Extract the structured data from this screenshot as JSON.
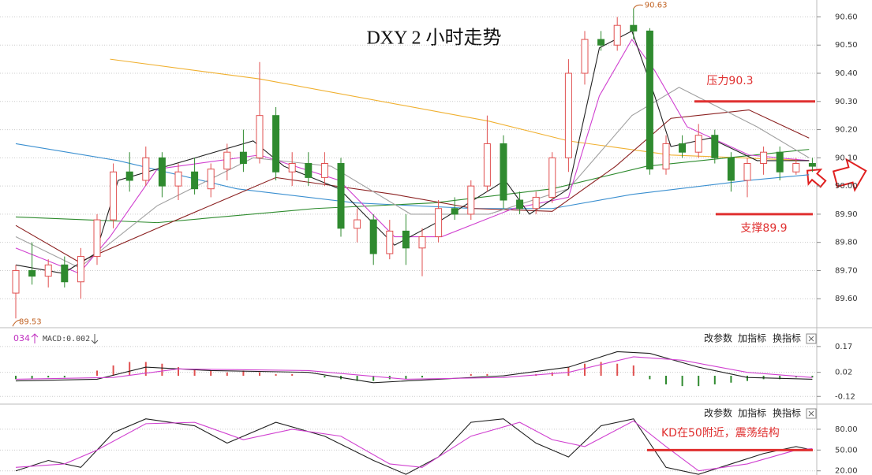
{
  "chart_data": [
    {
      "type": "candlestick",
      "title": "DXY 2 小时走势",
      "up_color": "#e05050",
      "down_color": "#2f8a2f",
      "grid": true,
      "ylim": [
        89.5,
        90.66
      ],
      "yticks": [
        {
          "value": 90.6,
          "label": "90.60"
        },
        {
          "value": 90.5,
          "label": "90.50"
        },
        {
          "value": 90.4,
          "label": "90.40"
        },
        {
          "value": 90.3,
          "label": "90.30"
        },
        {
          "value": 90.2,
          "label": "90.20"
        },
        {
          "value": 90.1,
          "label": "90.10"
        },
        {
          "value": 90.0,
          "label": "90.00"
        },
        {
          "value": 89.9,
          "label": "89.90"
        },
        {
          "value": 89.8,
          "label": "89.80"
        },
        {
          "value": 89.7,
          "label": "89.70"
        },
        {
          "value": 89.6,
          "label": "89.60"
        }
      ],
      "open": [
        89.62,
        89.7,
        89.68,
        89.72,
        89.66,
        89.75,
        89.88,
        90.05,
        90.02,
        90.1,
        90.0,
        90.05,
        89.99,
        90.06,
        90.12,
        90.1,
        90.25,
        90.05,
        90.08,
        90.03,
        90.08,
        89.85,
        89.88,
        89.76,
        89.84,
        89.78,
        89.82,
        89.92,
        89.9,
        90.0,
        90.15,
        89.95,
        89.92,
        89.96,
        90.1,
        90.4,
        90.52,
        90.5,
        90.57,
        90.55,
        90.06,
        90.15,
        90.12,
        90.18,
        90.1,
        90.02,
        90.08,
        90.12,
        90.05,
        90.08
      ],
      "high": [
        89.72,
        89.8,
        89.74,
        89.75,
        89.78,
        89.9,
        90.08,
        90.12,
        90.14,
        90.12,
        90.08,
        90.1,
        90.08,
        90.15,
        90.2,
        90.44,
        90.28,
        90.12,
        90.12,
        90.12,
        90.1,
        89.92,
        89.9,
        89.88,
        89.9,
        89.85,
        89.95,
        89.96,
        90.02,
        90.25,
        90.18,
        89.98,
        89.98,
        90.12,
        90.45,
        90.55,
        90.55,
        90.6,
        90.63,
        90.56,
        90.18,
        90.18,
        90.22,
        90.2,
        90.12,
        90.1,
        90.14,
        90.14,
        90.1,
        90.1
      ],
      "low": [
        89.53,
        89.65,
        89.64,
        89.64,
        89.6,
        89.72,
        89.85,
        89.98,
        90.0,
        89.96,
        89.95,
        89.97,
        89.96,
        90.02,
        90.05,
        90.08,
        90.02,
        90.0,
        90.0,
        90.0,
        89.82,
        89.8,
        89.72,
        89.74,
        89.72,
        89.68,
        89.8,
        89.88,
        89.88,
        89.98,
        89.92,
        89.9,
        89.9,
        89.94,
        90.05,
        90.36,
        90.48,
        90.48,
        90.52,
        90.04,
        90.04,
        90.1,
        90.1,
        90.08,
        89.98,
        89.96,
        90.04,
        90.02,
        90.04,
        90.05
      ],
      "close": [
        89.7,
        89.68,
        89.72,
        89.66,
        89.75,
        89.88,
        90.05,
        90.02,
        90.1,
        90.0,
        90.05,
        89.99,
        90.06,
        90.12,
        90.08,
        90.25,
        90.05,
        90.08,
        90.03,
        90.08,
        89.85,
        89.88,
        89.76,
        89.84,
        89.78,
        89.82,
        89.92,
        89.9,
        90.0,
        90.15,
        89.95,
        89.92,
        89.96,
        90.1,
        90.4,
        90.52,
        90.5,
        90.57,
        90.55,
        90.06,
        90.15,
        90.12,
        90.18,
        90.1,
        90.02,
        90.08,
        90.12,
        90.05,
        90.08,
        90.07
      ],
      "lines": [
        {
          "color": "#f0b030",
          "x": [
            5.8,
            15,
            29.1,
            34,
            40.3,
            48.8
          ],
          "values": [
            90.45,
            90.38,
            90.23,
            90.16,
            90.11,
            90.09
          ]
        },
        {
          "color": "#3a8fd0",
          "x": [
            0,
            6.3,
            13.6,
            20.9,
            28.2,
            33,
            37.9,
            45.1,
            48.8
          ],
          "values": [
            90.15,
            90.09,
            89.99,
            89.94,
            89.92,
            89.92,
            89.97,
            90.02,
            90.04
          ]
        },
        {
          "color": "#2e8b2e",
          "x": [
            0,
            8.7,
            18.4,
            25.7,
            33,
            38.8,
            48.8
          ],
          "values": [
            89.89,
            89.87,
            89.92,
            89.94,
            89.99,
            90.07,
            90.13
          ]
        },
        {
          "color": "#8b2020",
          "x": [
            0,
            3.9,
            8.7,
            16,
            23.3,
            28.2,
            33,
            36.9,
            40.3,
            45.1,
            48.8
          ],
          "values": [
            89.86,
            89.73,
            89.85,
            90.03,
            89.97,
            89.92,
            89.91,
            90.07,
            90.24,
            90.27,
            90.17
          ]
        },
        {
          "color": "#a0a0a0",
          "x": [
            0,
            3.9,
            8.7,
            14.6,
            19.4,
            24.3,
            29.1,
            34,
            37.9,
            40.8,
            45.6,
            48.8
          ],
          "values": [
            89.82,
            89.71,
            89.93,
            90.1,
            90.07,
            89.9,
            89.9,
            89.99,
            90.25,
            90.35,
            90.21,
            90.1
          ]
        },
        {
          "color": "#d040d0",
          "x": [
            0,
            3.9,
            5.8,
            8.7,
            15,
            19.9,
            23.3,
            26.2,
            30.6,
            34,
            35.9,
            37.9,
            39.3,
            41.3,
            45.1,
            48.8
          ],
          "values": [
            89.78,
            89.69,
            89.82,
            90.06,
            90.11,
            90.02,
            89.82,
            89.82,
            89.92,
            89.96,
            90.32,
            90.52,
            90.41,
            90.21,
            90.11,
            90.09
          ]
        },
        {
          "color": "#202020",
          "x": [
            0,
            2.9,
            4.9,
            6.3,
            14.6,
            16.5,
            19.9,
            23.3,
            26.2,
            30.1,
            31.6,
            34,
            35.9,
            37.9,
            39.3,
            40.3,
            42.7,
            45.6,
            48.8
          ],
          "values": [
            89.72,
            89.69,
            89.76,
            90.02,
            90.16,
            90.07,
            89.99,
            89.79,
            89.88,
            90.02,
            89.9,
            89.99,
            90.49,
            90.55,
            90.32,
            90.14,
            90.17,
            90.09,
            90.09
          ]
        }
      ],
      "annotations": [
        {
          "text": "压力90.3",
          "value": 90.3,
          "color": "#e03030"
        },
        {
          "text": "支撑89.9",
          "value": 89.9,
          "color": "#e03030"
        }
      ],
      "extreme_labels": {
        "high": "90.63",
        "low": "89.53"
      }
    },
    {
      "type": "macd",
      "grid": true,
      "ylim": [
        -0.16,
        0.27
      ],
      "yticks": [
        0.17,
        0.02,
        -0.12
      ],
      "header": {
        "period": "034",
        "indicator": "MACD:0.002"
      },
      "toolbar": [
        "改参数",
        "加指标",
        "换指标"
      ],
      "hist": [
        -0.02,
        -0.02,
        -0.01,
        -0.01,
        0.0,
        0.03,
        0.06,
        0.08,
        0.08,
        0.07,
        0.05,
        0.04,
        0.03,
        0.02,
        0.03,
        0.02,
        0.01,
        0.01,
        0.0,
        -0.01,
        -0.02,
        -0.03,
        -0.03,
        -0.02,
        -0.02,
        -0.01,
        0.0,
        0.0,
        0.01,
        0.01,
        0.0,
        0.0,
        0.01,
        0.02,
        0.05,
        0.07,
        0.08,
        0.07,
        0.06,
        -0.02,
        -0.05,
        -0.06,
        -0.06,
        -0.05,
        -0.04,
        -0.03,
        -0.02,
        -0.02,
        -0.01,
        -0.01
      ],
      "lines": [
        {
          "color": "#202020",
          "x": [
            0,
            5,
            8,
            12,
            18,
            22,
            26,
            30,
            34,
            37,
            39,
            42,
            45,
            49
          ],
          "values": [
            -0.03,
            -0.02,
            0.05,
            0.03,
            0.02,
            -0.04,
            -0.02,
            0.0,
            0.05,
            0.14,
            0.13,
            0.05,
            -0.01,
            -0.02
          ]
        },
        {
          "color": "#d040d0",
          "x": [
            0,
            6,
            10,
            18,
            24,
            30,
            34,
            38,
            41,
            45,
            49
          ],
          "values": [
            -0.02,
            -0.01,
            0.04,
            0.03,
            -0.02,
            -0.01,
            0.02,
            0.11,
            0.09,
            0.02,
            -0.01
          ]
        }
      ]
    },
    {
      "type": "kd",
      "grid": true,
      "ylim": [
        14,
        114
      ],
      "yticks": [
        {
          "value": 80,
          "label": "80.00"
        },
        {
          "value": 50,
          "label": "50.00"
        },
        {
          "value": 20,
          "label": "20.00"
        }
      ],
      "toolbar": [
        "改参数",
        "加指标",
        "换指标"
      ],
      "lines": [
        {
          "color": "#202020",
          "x": [
            0,
            2,
            4,
            6,
            8,
            11,
            13,
            16,
            19,
            22,
            24,
            26,
            28,
            30,
            32,
            34,
            36,
            38,
            40,
            42,
            44,
            46,
            48,
            49
          ],
          "values": [
            20,
            35,
            25,
            75,
            95,
            85,
            60,
            90,
            70,
            35,
            15,
            40,
            90,
            95,
            60,
            40,
            85,
            95,
            25,
            15,
            30,
            45,
            55,
            50
          ]
        },
        {
          "color": "#d040d0",
          "x": [
            0,
            3,
            5,
            8,
            11,
            14,
            17,
            20,
            23,
            25,
            28,
            31,
            33,
            35,
            38,
            40,
            42,
            45,
            48,
            49
          ],
          "values": [
            25,
            30,
            50,
            88,
            90,
            65,
            80,
            70,
            30,
            25,
            70,
            90,
            65,
            55,
            92,
            55,
            20,
            30,
            50,
            52
          ]
        }
      ],
      "annotations": [
        {
          "text": "KD在50附近，震荡结构",
          "value": 50,
          "color": "#e03030"
        }
      ]
    }
  ]
}
